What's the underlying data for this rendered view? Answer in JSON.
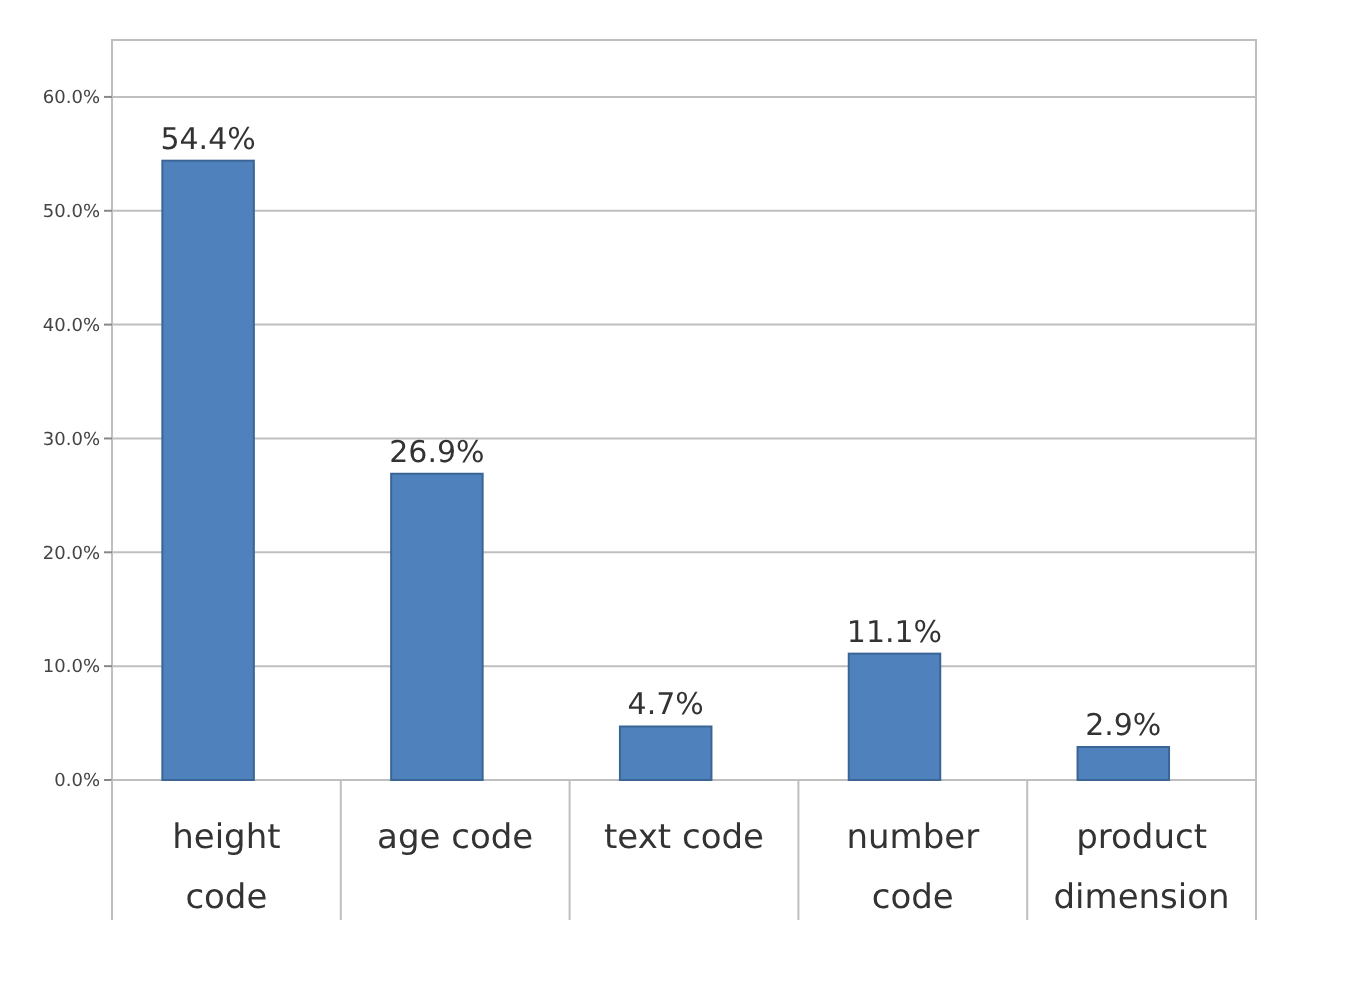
{
  "chart_data": {
    "type": "bar",
    "categories": [
      "height code",
      "age code",
      "text code",
      "number code",
      "product dimension"
    ],
    "values": [
      54.4,
      26.9,
      4.7,
      11.1,
      2.9
    ],
    "value_labels": [
      "54.4%",
      "26.9%",
      "4.7%",
      "11.1%",
      "2.9%"
    ],
    "color": "#4f81bd",
    "ylim": [
      0,
      65
    ],
    "yticks": [
      {
        "value": 0,
        "label": "0.0%"
      },
      {
        "value": 10,
        "label": "10.0%"
      },
      {
        "value": 20,
        "label": "20.0%"
      },
      {
        "value": 30,
        "label": "30.0%"
      },
      {
        "value": 40,
        "label": "40.0%"
      },
      {
        "value": 50,
        "label": "50.0%"
      },
      {
        "value": 60,
        "label": "60.0%"
      }
    ],
    "grid": true
  }
}
